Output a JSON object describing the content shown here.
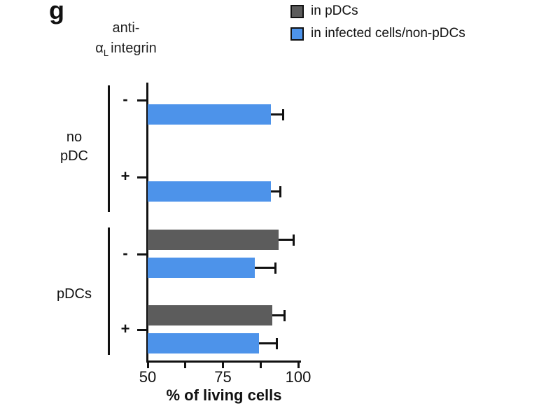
{
  "chart_data": {
    "type": "bar",
    "orientation": "horizontal",
    "panel_label": "g",
    "row_axis_title": {
      "line1": "anti-",
      "alpha": "α",
      "subscript": "L",
      "line2": "integrin",
      "full_text": "anti-αL integrin"
    },
    "x_axis": {
      "label": "% of living cells",
      "range": [
        50,
        100
      ],
      "ticks": [
        {
          "value": 50,
          "label": "50"
        },
        {
          "value": 62.5,
          "label": ""
        },
        {
          "value": 75,
          "label": "75"
        },
        {
          "value": 87.5,
          "label": ""
        },
        {
          "value": 100,
          "label": "100"
        }
      ]
    },
    "legend": [
      {
        "label": "in pDCs",
        "color": "#5c5c5c"
      },
      {
        "label": "in infected cells/non-pDCs",
        "color": "#4d93ea"
      }
    ],
    "groups": [
      {
        "name": "no pDC",
        "lines": [
          "no",
          "pDC"
        ]
      },
      {
        "name": "pDCs",
        "lines": [
          "pDCs"
        ]
      }
    ],
    "rows": [
      {
        "group": "no pDC",
        "condition": "-",
        "bars": [
          {
            "series": "in infected cells/non-pDCs",
            "value": 91,
            "error": 4
          }
        ]
      },
      {
        "group": "no pDC",
        "condition": "+",
        "bars": [
          {
            "series": "in infected cells/non-pDCs",
            "value": 91,
            "error": 3
          }
        ]
      },
      {
        "group": "pDCs",
        "condition": "-",
        "bars": [
          {
            "series": "in pDCs",
            "value": 93.5,
            "error": 5
          },
          {
            "series": "in infected cells/non-pDCs",
            "value": 85.5,
            "error": 7
          }
        ]
      },
      {
        "group": "pDCs",
        "condition": "+",
        "bars": [
          {
            "series": "in pDCs",
            "value": 91.5,
            "error": 4
          },
          {
            "series": "in infected cells/non-pDCs",
            "value": 87,
            "error": 6
          }
        ]
      }
    ],
    "grid": false,
    "background": "#ffffff",
    "legend_position": "top-right"
  }
}
